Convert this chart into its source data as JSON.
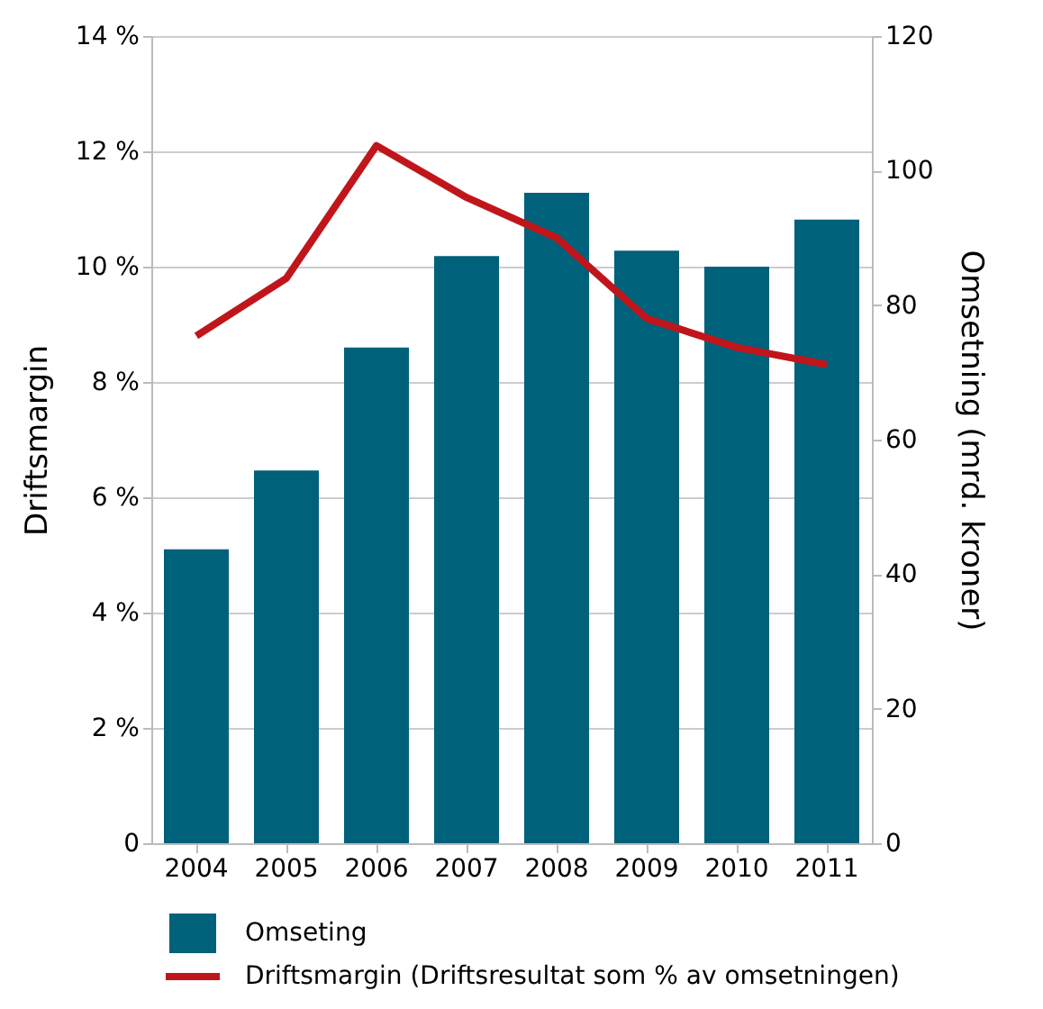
{
  "chart_data": {
    "type": "bar",
    "categories": [
      "2004",
      "2005",
      "2006",
      "2007",
      "2008",
      "2009",
      "2010",
      "2011"
    ],
    "ylabel": "Driftsmargin",
    "y2label": "Omsetning (mrd. kroner)",
    "series": [
      {
        "name": "Omseting",
        "axis": "y2",
        "color": "#00617a",
        "values": [
          43.7,
          55.4,
          73.7,
          87.3,
          96.7,
          88.1,
          85.7,
          92.7
        ]
      },
      {
        "name": "Driftsmargin (Driftsresultat som % av omsetningen)",
        "type": "line",
        "color": "#c0161b",
        "values": [
          8.8,
          9.8,
          12.1,
          11.2,
          10.5,
          9.1,
          8.6,
          8.3
        ]
      }
    ],
    "ylim": [
      0,
      14
    ],
    "yticks": [
      0,
      {
        "value": 2,
        "label": "2 %"
      },
      {
        "value": 4,
        "label": "4 %"
      },
      {
        "value": 6,
        "label": "6 %"
      },
      {
        "value": 8,
        "label": "8 %"
      },
      {
        "value": 10,
        "label": "10 %"
      },
      {
        "value": 12,
        "label": "12 %"
      },
      {
        "value": 14,
        "label": "14 %"
      }
    ],
    "y2lim": [
      0,
      120
    ],
    "y2ticks": [
      0,
      20,
      40,
      60,
      80,
      100,
      120
    ],
    "grid": "y",
    "legend": "bottom",
    "marker": "none",
    "line_style": "solid"
  }
}
